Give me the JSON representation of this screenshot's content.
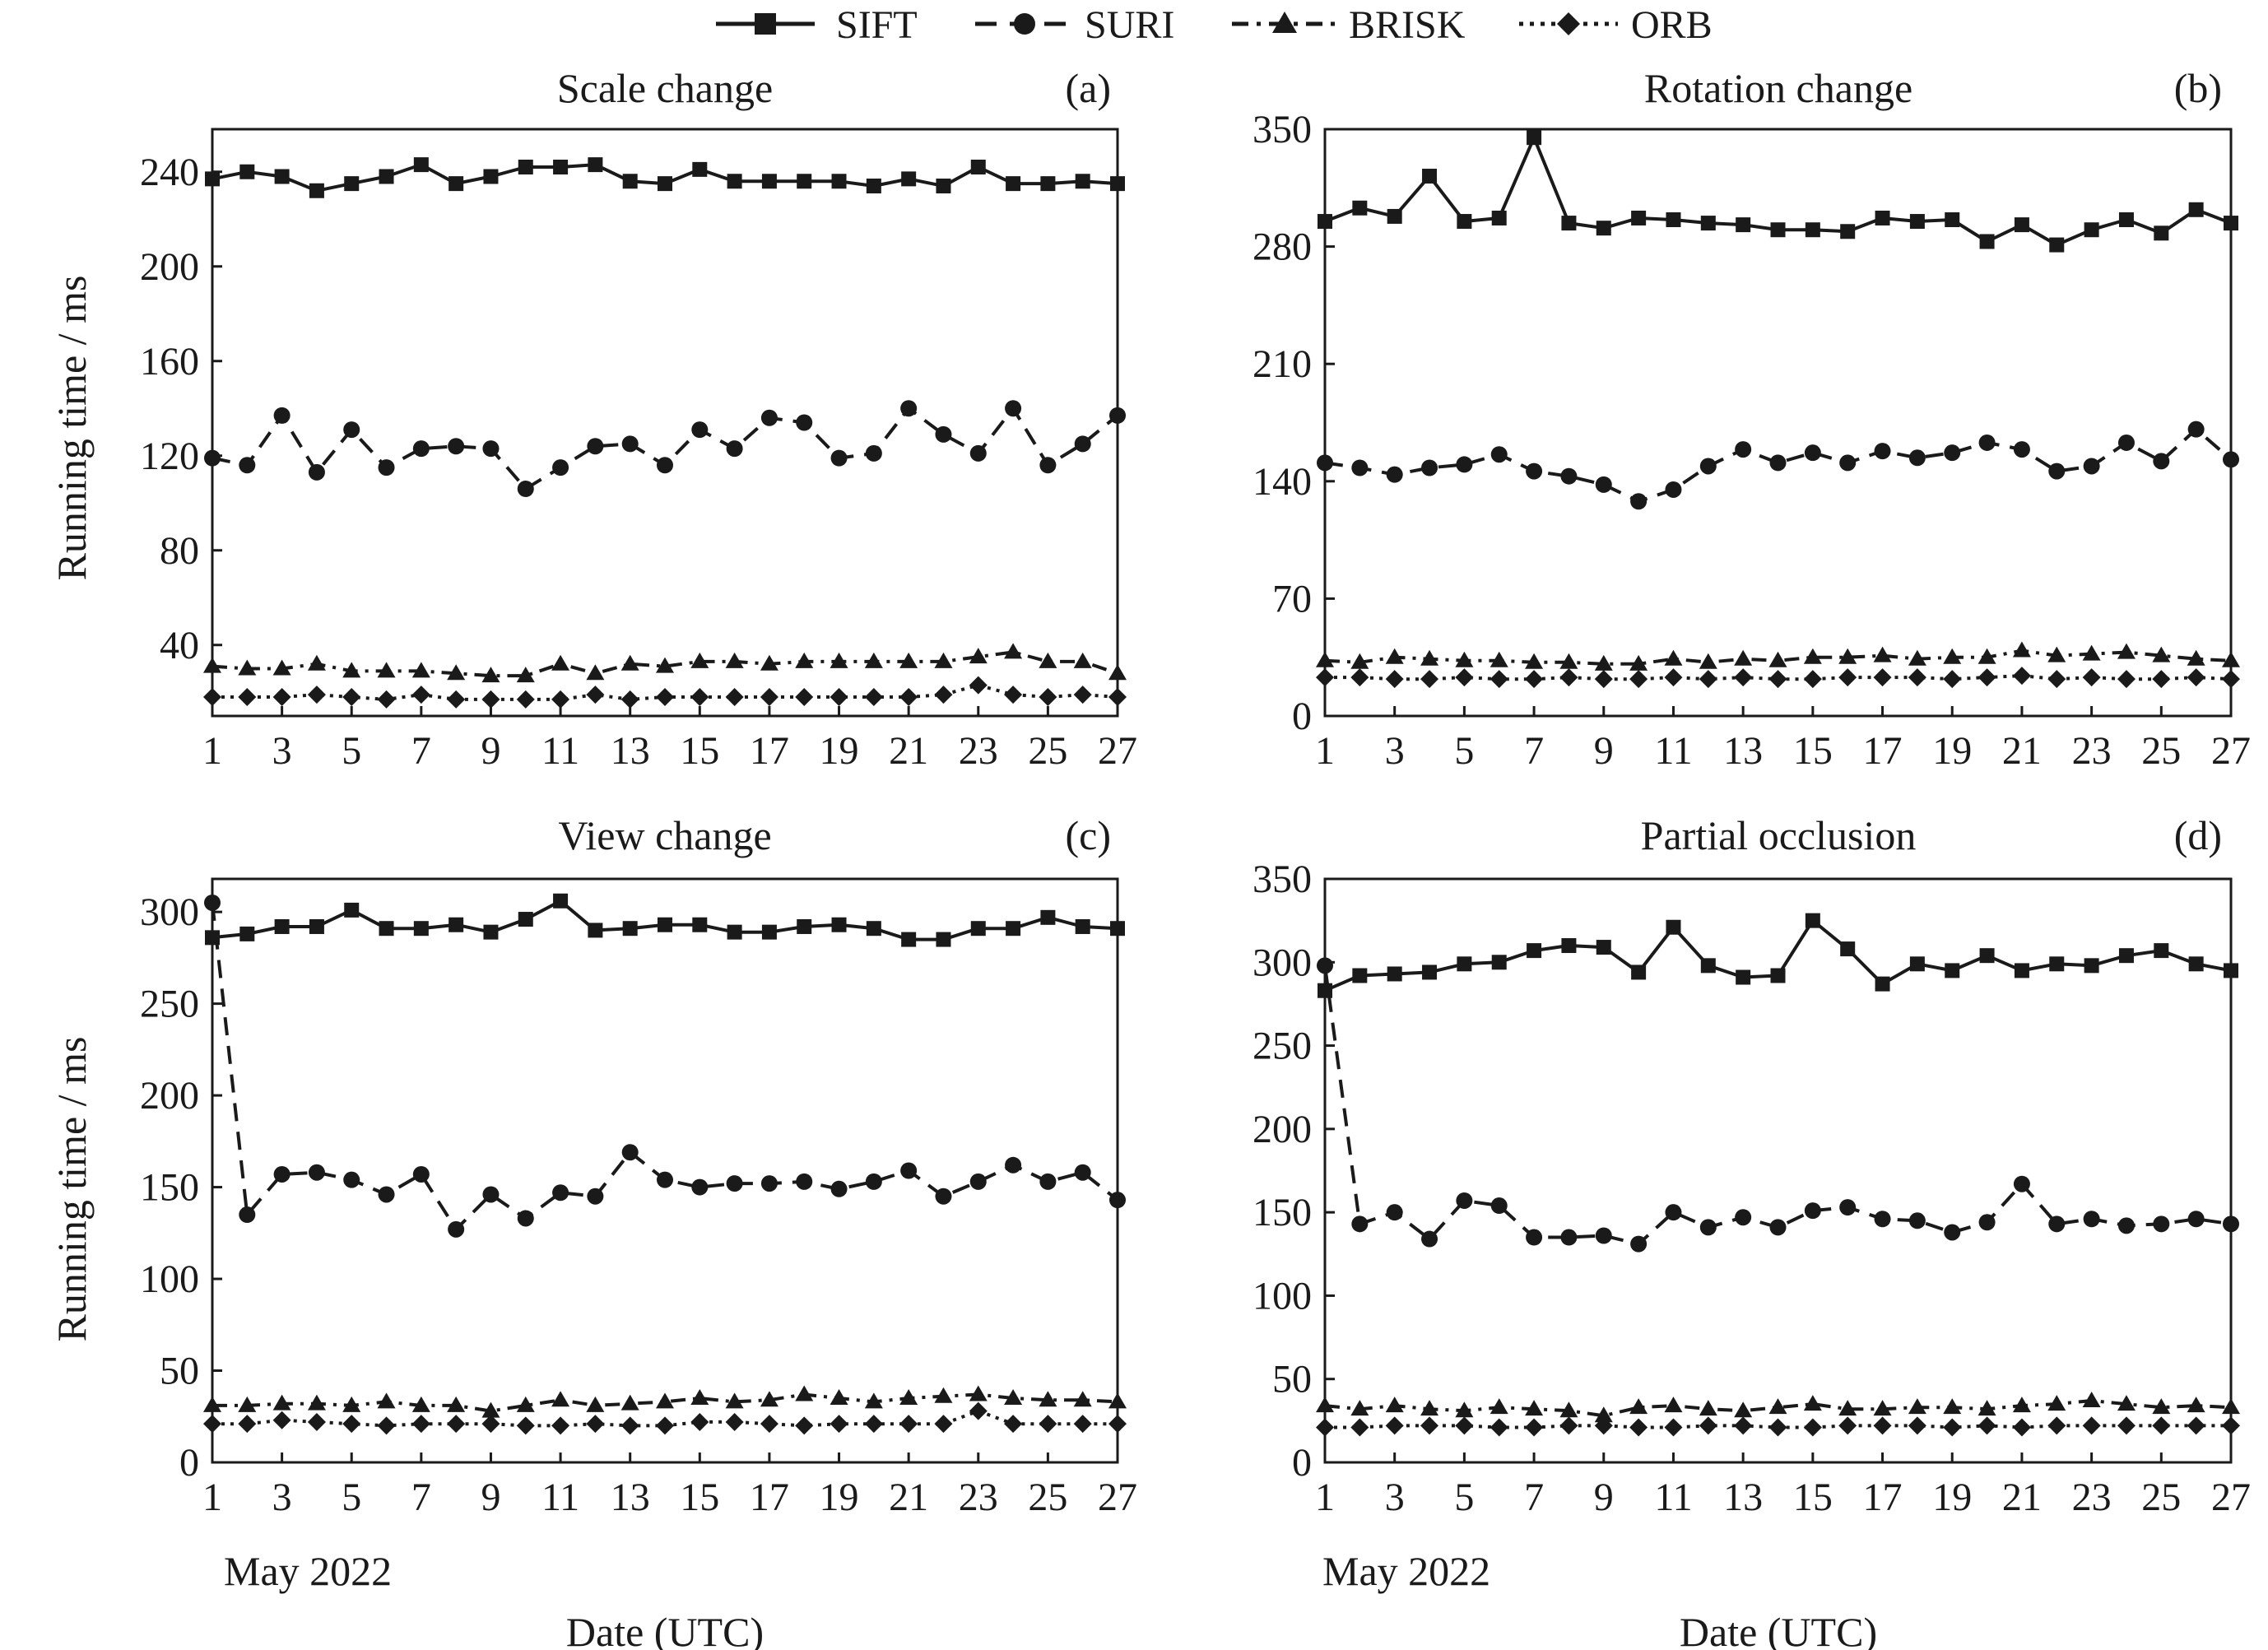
{
  "figure": {
    "legend": [
      "SIFT",
      "SURI",
      "BRISK",
      "ORB"
    ],
    "x_caption": "Date (UTC)",
    "x_date_note": "May 2022",
    "colors": {
      "ink": "#1a1a1a",
      "background": "#ffffff"
    }
  },
  "chart_data": [
    {
      "type": "line",
      "panel_label": "(a)",
      "title": "Scale change",
      "ylabel": "Running time / ms",
      "xlabel": "",
      "x": [
        1,
        2,
        3,
        4,
        5,
        6,
        7,
        8,
        9,
        10,
        11,
        12,
        13,
        14,
        15,
        16,
        17,
        18,
        19,
        20,
        21,
        22,
        23,
        24,
        25,
        26,
        27
      ],
      "xticks": [
        1,
        3,
        5,
        7,
        9,
        11,
        13,
        15,
        17,
        19,
        21,
        23,
        25,
        27
      ],
      "xlim": [
        1,
        27
      ],
      "yticks": [
        40,
        80,
        120,
        160,
        200,
        240
      ],
      "ylim": [
        10,
        258
      ],
      "grid": false,
      "legend_position": "top",
      "series": [
        {
          "name": "SIFT",
          "marker": "square",
          "line": "solid",
          "values": [
            237,
            240,
            238,
            232,
            235,
            238,
            243,
            235,
            238,
            242,
            242,
            243,
            236,
            235,
            241,
            236,
            236,
            236,
            236,
            234,
            237,
            234,
            242,
            235,
            235,
            236,
            235
          ]
        },
        {
          "name": "SURI",
          "marker": "circle",
          "line": "dashed",
          "values": [
            119,
            116,
            137,
            113,
            131,
            115,
            123,
            124,
            123,
            106,
            115,
            124,
            125,
            116,
            131,
            123,
            136,
            134,
            119,
            121,
            140,
            129,
            121,
            140,
            116,
            125,
            137
          ]
        },
        {
          "name": "BRISK",
          "marker": "triangle",
          "line": "dashdot",
          "values": [
            31,
            30,
            30,
            32,
            29,
            29,
            29,
            28,
            27,
            27,
            32,
            28,
            32,
            31,
            33,
            33,
            32,
            33,
            33,
            33,
            33,
            33,
            35,
            37,
            33,
            33,
            28
          ]
        },
        {
          "name": "ORB",
          "marker": "diamond",
          "line": "dotted",
          "values": [
            18,
            18,
            18,
            19,
            18,
            17,
            19,
            17,
            17,
            17,
            17,
            19,
            17,
            18,
            18,
            18,
            18,
            18,
            18,
            18,
            18,
            19,
            23,
            19,
            18,
            19,
            18
          ]
        }
      ]
    },
    {
      "type": "line",
      "panel_label": "(b)",
      "title": "Rotation change",
      "ylabel": "",
      "xlabel": "",
      "x": [
        1,
        2,
        3,
        4,
        5,
        6,
        7,
        8,
        9,
        10,
        11,
        12,
        13,
        14,
        15,
        16,
        17,
        18,
        19,
        20,
        21,
        22,
        23,
        24,
        25,
        26,
        27
      ],
      "xticks": [
        1,
        3,
        5,
        7,
        9,
        11,
        13,
        15,
        17,
        19,
        21,
        23,
        25,
        27
      ],
      "xlim": [
        1,
        27
      ],
      "yticks": [
        0,
        70,
        140,
        210,
        280,
        350
      ],
      "ylim": [
        0,
        350
      ],
      "grid": false,
      "legend_position": "top",
      "series": [
        {
          "name": "SIFT",
          "marker": "square",
          "line": "solid",
          "values": [
            295,
            303,
            298,
            322,
            295,
            297,
            345,
            294,
            291,
            297,
            296,
            294,
            293,
            290,
            290,
            289,
            297,
            295,
            296,
            283,
            293,
            281,
            290,
            296,
            288,
            302,
            294
          ]
        },
        {
          "name": "SURI",
          "marker": "circle",
          "line": "dashed",
          "values": [
            151,
            148,
            144,
            148,
            150,
            156,
            146,
            143,
            138,
            128,
            135,
            149,
            159,
            151,
            157,
            151,
            158,
            154,
            157,
            163,
            159,
            146,
            149,
            163,
            152,
            171,
            153
          ]
        },
        {
          "name": "BRISK",
          "marker": "triangle",
          "line": "dashdot",
          "values": [
            33,
            32,
            35,
            34,
            33,
            33,
            32,
            32,
            31,
            31,
            34,
            32,
            34,
            33,
            35,
            35,
            36,
            34,
            35,
            35,
            39,
            36,
            37,
            38,
            36,
            34,
            33
          ]
        },
        {
          "name": "ORB",
          "marker": "diamond",
          "line": "dotted",
          "values": [
            23,
            23,
            22,
            22,
            23,
            22,
            22,
            23,
            22,
            22,
            23,
            22,
            23,
            22,
            22,
            23,
            23,
            23,
            22,
            23,
            24,
            22,
            23,
            22,
            22,
            23,
            22
          ]
        }
      ]
    },
    {
      "type": "line",
      "panel_label": "(c)",
      "title": "View change",
      "ylabel": "Running time / ms",
      "xlabel": "",
      "x": [
        1,
        2,
        3,
        4,
        5,
        6,
        7,
        8,
        9,
        10,
        11,
        12,
        13,
        14,
        15,
        16,
        17,
        18,
        19,
        20,
        21,
        22,
        23,
        24,
        25,
        26,
        27
      ],
      "xticks": [
        1,
        3,
        5,
        7,
        9,
        11,
        13,
        15,
        17,
        19,
        21,
        23,
        25,
        27
      ],
      "xlim": [
        1,
        27
      ],
      "yticks": [
        0,
        50,
        100,
        150,
        200,
        250,
        300
      ],
      "ylim": [
        0,
        318
      ],
      "grid": false,
      "legend_position": "top",
      "series": [
        {
          "name": "SIFT",
          "marker": "square",
          "line": "solid",
          "values": [
            286,
            288,
            292,
            292,
            301,
            291,
            291,
            293,
            289,
            296,
            306,
            290,
            291,
            293,
            293,
            289,
            289,
            292,
            293,
            291,
            285,
            285,
            291,
            291,
            297,
            292,
            291
          ]
        },
        {
          "name": "SURI",
          "marker": "circle",
          "line": "dashed",
          "values": [
            305,
            135,
            157,
            158,
            154,
            146,
            157,
            127,
            146,
            133,
            147,
            145,
            169,
            154,
            150,
            152,
            152,
            153,
            149,
            153,
            159,
            145,
            153,
            162,
            153,
            158,
            143
          ]
        },
        {
          "name": "BRISK",
          "marker": "triangle",
          "line": "dashdot",
          "values": [
            31,
            31,
            32,
            32,
            31,
            33,
            31,
            31,
            28,
            31,
            34,
            31,
            32,
            33,
            35,
            33,
            34,
            37,
            35,
            33,
            35,
            36,
            37,
            35,
            34,
            34,
            33
          ]
        },
        {
          "name": "ORB",
          "marker": "diamond",
          "line": "dotted",
          "values": [
            21,
            21,
            23,
            22,
            21,
            20,
            21,
            21,
            21,
            20,
            20,
            21,
            20,
            20,
            22,
            22,
            21,
            20,
            21,
            21,
            21,
            21,
            28,
            21,
            21,
            21,
            21
          ]
        }
      ]
    },
    {
      "type": "line",
      "panel_label": "(d)",
      "title": "Partial occlusion",
      "ylabel": "",
      "xlabel": "",
      "x": [
        1,
        2,
        3,
        4,
        5,
        6,
        7,
        8,
        9,
        10,
        11,
        12,
        13,
        14,
        15,
        16,
        17,
        18,
        19,
        20,
        21,
        22,
        23,
        24,
        25,
        26,
        27
      ],
      "xticks": [
        1,
        3,
        5,
        7,
        9,
        11,
        13,
        15,
        17,
        19,
        21,
        23,
        25,
        27
      ],
      "xlim": [
        1,
        27
      ],
      "yticks": [
        0,
        50,
        100,
        150,
        200,
        250,
        300,
        350
      ],
      "ylim": [
        0,
        350
      ],
      "grid": false,
      "legend_position": "top",
      "series": [
        {
          "name": "SIFT",
          "marker": "square",
          "line": "solid",
          "values": [
            283,
            292,
            293,
            294,
            299,
            300,
            307,
            310,
            309,
            294,
            321,
            298,
            291,
            292,
            325,
            308,
            287,
            299,
            295,
            304,
            295,
            299,
            298,
            304,
            307,
            299,
            295
          ]
        },
        {
          "name": "SURI",
          "marker": "circle",
          "line": "dashed",
          "values": [
            298,
            143,
            150,
            134,
            157,
            154,
            135,
            135,
            136,
            131,
            150,
            141,
            147,
            141,
            151,
            153,
            146,
            145,
            138,
            144,
            167,
            143,
            146,
            142,
            143,
            146,
            143
          ]
        },
        {
          "name": "BRISK",
          "marker": "triangle",
          "line": "dashdot",
          "values": [
            34,
            32,
            34,
            32,
            31,
            33,
            32,
            31,
            28,
            33,
            34,
            32,
            31,
            33,
            35,
            32,
            32,
            33,
            33,
            32,
            34,
            35,
            37,
            35,
            33,
            34,
            33
          ]
        },
        {
          "name": "ORB",
          "marker": "diamond",
          "line": "dotted",
          "values": [
            21,
            21,
            22,
            22,
            22,
            21,
            21,
            22,
            22,
            21,
            21,
            22,
            22,
            21,
            21,
            22,
            22,
            22,
            21,
            22,
            21,
            22,
            22,
            22,
            22,
            22,
            22
          ]
        }
      ]
    }
  ]
}
